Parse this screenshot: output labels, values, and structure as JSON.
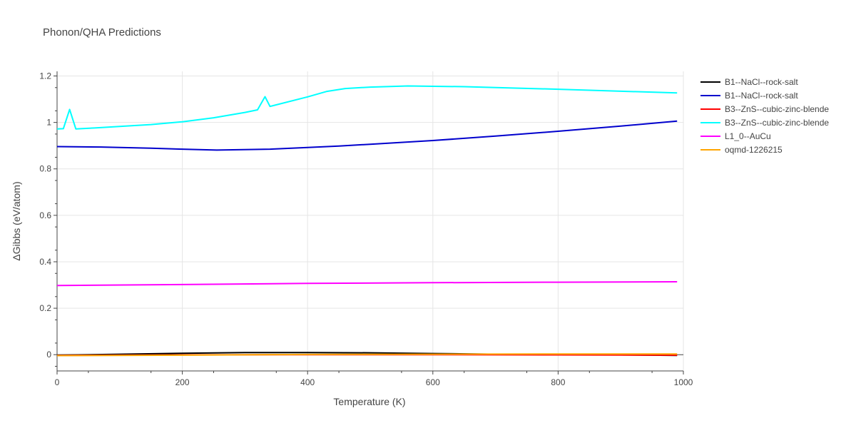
{
  "chart_data": {
    "type": "line",
    "title": "Phonon/QHA Predictions",
    "xlabel": "Temperature (K)",
    "ylabel": "ΔGibbs (eV/atom)",
    "xlim": [
      0,
      1000
    ],
    "ylim": [
      -0.07,
      1.22
    ],
    "x_ticks": [
      0,
      200,
      400,
      600,
      800,
      1000
    ],
    "y_ticks": [
      0,
      0.2,
      0.4,
      0.6,
      0.8,
      1,
      1.2
    ],
    "x_tick_labels": [
      "0",
      "200",
      "400",
      "600",
      "800",
      "1000"
    ],
    "y_tick_labels": [
      "0",
      "0.2",
      "0.4",
      "0.6",
      "0.8",
      "1",
      "1.2"
    ],
    "grid": true,
    "legend_position": "right",
    "series": [
      {
        "name": "B1--NaCl--rock-salt",
        "color": "#000000",
        "x": [
          0,
          100,
          200,
          300,
          400,
          500,
          600,
          700,
          800,
          900,
          990
        ],
        "y": [
          -0.002,
          0.002,
          0.006,
          0.009,
          0.009,
          0.008,
          0.005,
          0.002,
          0.0,
          -0.001,
          -0.003
        ]
      },
      {
        "name": "B1--NaCl--rock-salt",
        "color": "#0000cd",
        "x": [
          0,
          70,
          150,
          200,
          255,
          340,
          400,
          450,
          500,
          600,
          700,
          800,
          900,
          990
        ],
        "y": [
          0.896,
          0.894,
          0.889,
          0.885,
          0.881,
          0.885,
          0.892,
          0.898,
          0.906,
          0.922,
          0.941,
          0.962,
          0.984,
          1.006
        ]
      },
      {
        "name": "B3--ZnS--cubic-zinc-blende",
        "color": "#ff0000",
        "x": [
          0,
          200,
          400,
          600,
          800,
          990
        ],
        "y": [
          -0.003,
          -0.001,
          0.0,
          0.0,
          -0.001,
          -0.002
        ]
      },
      {
        "name": "B3--ZnS--cubic-zinc-blende",
        "color": "#00ffff",
        "x": [
          0,
          10,
          20,
          30,
          60,
          100,
          150,
          200,
          250,
          300,
          320,
          332,
          340,
          400,
          430,
          460,
          500,
          560,
          650,
          800,
          990
        ],
        "y": [
          0.972,
          0.973,
          1.056,
          0.972,
          0.976,
          0.983,
          0.991,
          1.003,
          1.02,
          1.043,
          1.054,
          1.111,
          1.069,
          1.11,
          1.133,
          1.146,
          1.152,
          1.157,
          1.154,
          1.143,
          1.127
        ]
      },
      {
        "name": "L1_0--AuCu",
        "color": "#ff00ff",
        "x": [
          0,
          200,
          400,
          600,
          800,
          990
        ],
        "y": [
          0.298,
          0.302,
          0.307,
          0.31,
          0.312,
          0.314
        ]
      },
      {
        "name": "oqmd-1226215",
        "color": "#ffa500",
        "x": [
          0,
          200,
          400,
          600,
          800,
          990
        ],
        "y": [
          -0.004,
          -0.002,
          0.001,
          0.002,
          0.003,
          0.003
        ]
      }
    ]
  }
}
